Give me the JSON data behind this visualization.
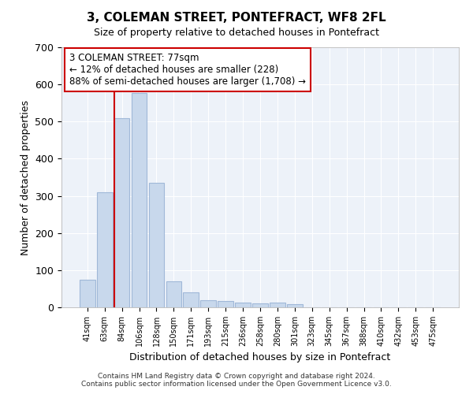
{
  "title": "3, COLEMAN STREET, PONTEFRACT, WF8 2FL",
  "subtitle": "Size of property relative to detached houses in Pontefract",
  "xlabel": "Distribution of detached houses by size in Pontefract",
  "ylabel": "Number of detached properties",
  "bar_labels": [
    "41sqm",
    "63sqm",
    "84sqm",
    "106sqm",
    "128sqm",
    "150sqm",
    "171sqm",
    "193sqm",
    "215sqm",
    "236sqm",
    "258sqm",
    "280sqm",
    "301sqm",
    "323sqm",
    "345sqm",
    "367sqm",
    "388sqm",
    "410sqm",
    "432sqm",
    "453sqm",
    "475sqm"
  ],
  "bar_values": [
    75,
    310,
    510,
    578,
    335,
    70,
    40,
    20,
    18,
    12,
    10,
    12,
    8,
    0,
    0,
    0,
    0,
    0,
    0,
    0,
    0
  ],
  "bar_color": "#c8d8ec",
  "bar_edge_color": "#a0b8d8",
  "property_line_color": "#cc0000",
  "property_line_index": 2,
  "annotation_title": "3 COLEMAN STREET: 77sqm",
  "annotation_line1": "← 12% of detached houses are smaller (228)",
  "annotation_line2": "88% of semi-detached houses are larger (1,708) →",
  "annotation_box_color": "#ffffff",
  "annotation_box_edge": "#cc0000",
  "ylim": [
    0,
    700
  ],
  "yticks": [
    0,
    100,
    200,
    300,
    400,
    500,
    600,
    700
  ],
  "footer1": "Contains HM Land Registry data © Crown copyright and database right 2024.",
  "footer2": "Contains public sector information licensed under the Open Government Licence v3.0.",
  "background_color": "#ffffff",
  "plot_bg_color": "#edf2f9",
  "grid_color": "#ffffff",
  "figsize": [
    6.0,
    5.0
  ],
  "dpi": 100
}
